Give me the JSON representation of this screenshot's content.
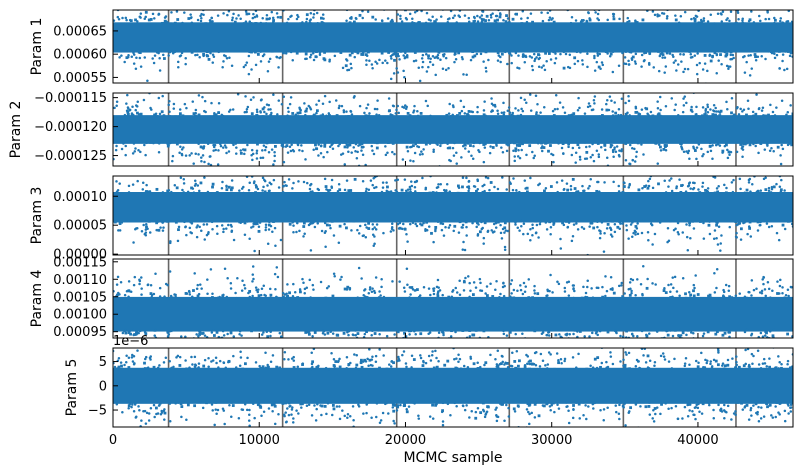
{
  "colors": {
    "series": "#1f77b4",
    "vline": "#666666",
    "axis": "#000000"
  },
  "chart_data": [
    {
      "type": "scatter",
      "ylabel": "Param 1",
      "xlim": [
        0,
        46500
      ],
      "ylim": [
        0.000538,
        0.000695
      ],
      "yticks": [
        0.00055,
        0.0006,
        0.00065
      ],
      "ytick_labels": [
        "0.00055",
        "0.00060",
        "0.00065"
      ],
      "series": [
        {
          "center": 0.000636,
          "spread": 2.1e-05
        }
      ]
    },
    {
      "type": "scatter",
      "ylabel": "Param 2",
      "xlim": [
        0,
        46500
      ],
      "ylim": [
        -0.0001268,
        -0.0001142
      ],
      "yticks": [
        -0.000125,
        -0.00012,
        -0.000115
      ],
      "ytick_labels": [
        "−0.000125",
        "−0.000120",
        "−0.000115"
      ],
      "series": [
        {
          "center": -0.0001205,
          "spread": 1.6e-06
        }
      ]
    },
    {
      "type": "scatter",
      "ylabel": "Param 3",
      "xlim": [
        0,
        46500
      ],
      "ylim": [
        -1.5e-06,
        0.000135
      ],
      "yticks": [
        0.0,
        5e-05,
        0.0001
      ],
      "ytick_labels": [
        "0.00000",
        "0.00005",
        "0.00010"
      ],
      "series": [
        {
          "center": 8.1e-05,
          "spread": 1.7e-05
        }
      ]
    },
    {
      "type": "scatter",
      "ylabel": "Param 4",
      "xlim": [
        0,
        46500
      ],
      "ylim": [
        0.000932,
        0.001158
      ],
      "yticks": [
        0.00095,
        0.001,
        0.00105,
        0.0011,
        0.00115
      ],
      "ytick_labels": [
        "0.00095",
        "0.00100",
        "0.00105",
        "0.00110",
        "0.00115"
      ],
      "series": [
        {
          "center": 0.001,
          "spread": 3.2e-05
        }
      ]
    },
    {
      "type": "scatter",
      "ylabel": "Param 5",
      "offset_text": "1e−6",
      "xlim": [
        0,
        46500
      ],
      "ylim": [
        -8.5e-06,
        7.8e-06
      ],
      "yticks": [
        -5e-06,
        0.0,
        5e-06
      ],
      "ytick_labels": [
        "−5",
        "0",
        "5"
      ],
      "xticks": [
        0,
        10000,
        20000,
        30000,
        40000
      ],
      "xtick_labels": [
        "0",
        "10000",
        "20000",
        "30000",
        "40000"
      ],
      "xlabel": "MCMC sample",
      "series": [
        {
          "center": 0.0,
          "spread": 2.4e-06
        }
      ]
    }
  ],
  "vlines": [
    3800,
    11600,
    19400,
    27100,
    34900,
    42600
  ]
}
